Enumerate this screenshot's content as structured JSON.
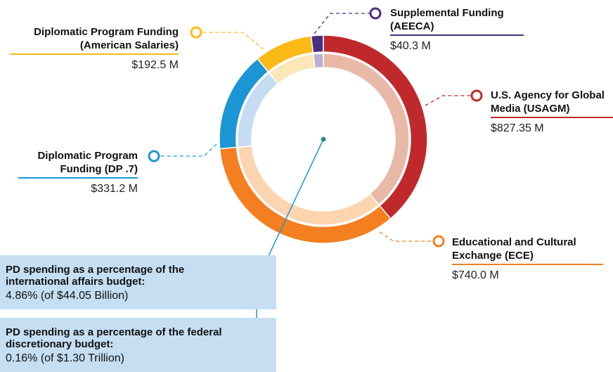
{
  "chart_data": {
    "type": "pie",
    "categories": [
      "Supplemental Funding (AEECA)",
      "U.S. Agency for Global Media (USAGM)",
      "Educational and Cultural Exchange (ECE)",
      "Diplomatic Program Funding (DP .7)",
      "Diplomatic Program Funding (American Salaries)"
    ],
    "values": [
      40.3,
      827.35,
      740.0,
      331.2,
      192.5
    ],
    "value_labels": [
      "$40.3 M",
      "$827.35 M",
      "$740.0 M",
      "$331.2 M",
      "$192.5 M"
    ],
    "colors": [
      "#4b2e83",
      "#c0292b",
      "#f47f20",
      "#1b96d4",
      "#fdb916"
    ],
    "inner_colors": [
      "#b8b0d4",
      "#e8b9a6",
      "#fdd4b0",
      "#c6dcf2",
      "#fde6b8"
    ],
    "notes": [
      {
        "heading": "PD spending as a percentage of the international affairs budget:",
        "text": "4.86% (of $44.05 Billion)"
      },
      {
        "heading": "PD spending as a percentage of the federal discretionary budget:",
        "text": "0.16% (of $1.30 Trillion)"
      }
    ]
  }
}
